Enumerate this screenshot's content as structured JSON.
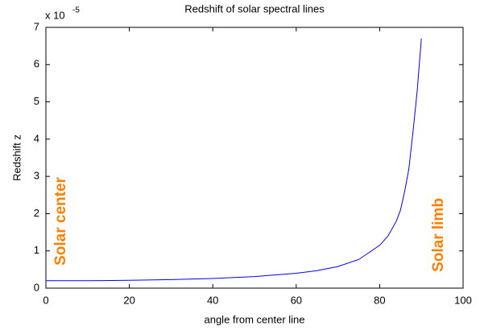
{
  "chart_data": {
    "type": "line",
    "title": "Redshift of solar spectral lines",
    "x_label": "angle from center line",
    "y_label": "Redshift z",
    "y_multiplier": {
      "base": "x 10",
      "exponent": "-5"
    },
    "annotations": [
      "Solar center",
      "Solar limb"
    ],
    "x": [
      0,
      10,
      20,
      30,
      40,
      50,
      60,
      65,
      70,
      75,
      80,
      82,
      84,
      85,
      86,
      87,
      88,
      89,
      90
    ],
    "series": [
      {
        "color": "#0000ff",
        "values": [
          0.2,
          0.2,
          0.21,
          0.23,
          0.26,
          0.31,
          0.4,
          0.47,
          0.58,
          0.77,
          1.15,
          1.4,
          1.8,
          2.1,
          2.6,
          3.2,
          4.2,
          5.3,
          6.7
        ]
      }
    ],
    "annotation_color": "#ff8000",
    "xlim": [
      0,
      100
    ],
    "xticks": [
      0,
      20,
      40,
      60,
      80,
      100
    ],
    "ylim": [
      0,
      7
    ],
    "yticks": [
      0,
      1,
      2,
      3,
      4,
      5,
      6,
      7
    ],
    "grid": false
  }
}
